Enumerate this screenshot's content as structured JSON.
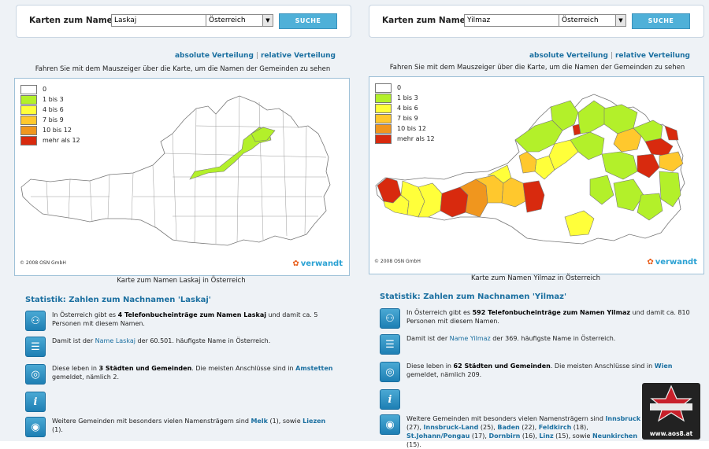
{
  "left": {
    "search": {
      "label": "Karten zum Namen",
      "value": "Laskaj",
      "country": "Österreich",
      "button": "SUCHE"
    },
    "links": {
      "absolute": "absolute Verteilung",
      "sep": "|",
      "relative": "relative Verteilung"
    },
    "hint": "Fahren Sie mit dem Mauszeiger über die Karte, um die Namen der Gemeinden zu sehen",
    "legend": [
      {
        "label": "0",
        "color": "#ffffff"
      },
      {
        "label": "1 bis 3",
        "color": "#b3f02a"
      },
      {
        "label": "4 bis 6",
        "color": "#ffff3a"
      },
      {
        "label": "7 bis 9",
        "color": "#ffc82d"
      },
      {
        "label": "10 bis 12",
        "color": "#f0961e"
      },
      {
        "label": "mehr als 12",
        "color": "#d82a0e"
      }
    ],
    "copyright": "© 2008 OSN GmbH",
    "brand": "verwandt",
    "caption": "Karte zum Namen Laskaj in Österreich",
    "stats_title": "Statistik: Zahlen zum Nachnamen 'Laskaj'",
    "stats": {
      "s1": {
        "a": "In Österreich gibt es ",
        "b": "4 Telefonbucheinträge zum Namen Laskaj",
        "c": " und damit ca. 5 Personen mit diesem Namen."
      },
      "s2": {
        "a": "Damit ist der ",
        "link": "Name Laskaj",
        "c": " der 60.501. häufigste Name in Österreich."
      },
      "s3": {
        "a": "Diese leben in ",
        "b": "3 Städten und Gemeinden",
        "c": ". Die meisten Anschlüsse sind in ",
        "city": "Amstetten",
        "d": " gemeldet, nämlich 2."
      },
      "s5": {
        "a": "Weitere Gemeinden mit besonders vielen Namensträgern sind ",
        "c1": "Melk",
        "n1": " (1), sowie ",
        "c2": "Liezen",
        "n2": " (1)."
      }
    }
  },
  "right": {
    "search": {
      "label": "Karten zum Namen",
      "value": "Yilmaz",
      "country": "Österreich",
      "button": "SUCHE"
    },
    "links": {
      "absolute": "absolute Verteilung",
      "sep": "|",
      "relative": "relative Verteilung"
    },
    "hint": "Fahren Sie mit dem Mauszeiger über die Karte, um die Namen der Gemeinden zu sehen",
    "legend": [
      {
        "label": "0",
        "color": "#ffffff"
      },
      {
        "label": "1 bis 3",
        "color": "#b3f02a"
      },
      {
        "label": "4 bis 6",
        "color": "#ffff3a"
      },
      {
        "label": "7 bis 9",
        "color": "#ffc82d"
      },
      {
        "label": "10 bis 12",
        "color": "#f0961e"
      },
      {
        "label": "mehr als 12",
        "color": "#d82a0e"
      }
    ],
    "copyright": "© 2008 OSN GmbH",
    "brand": "verwandt",
    "caption": "Karte zum Namen Yilmaz in Österreich",
    "stats_title": "Statistik: Zahlen zum Nachnamen 'Yilmaz'",
    "stats": {
      "s1": {
        "a": "In Österreich gibt es ",
        "b": "592 Telefonbucheinträge zum Namen Yilmaz",
        "c": " und damit ca. 810 Personen mit diesem Namen."
      },
      "s2": {
        "a": "Damit ist der ",
        "link": "Name Yilmaz",
        "c": " der 369. häufigste Name in Österreich."
      },
      "s3": {
        "a": "Diese leben in ",
        "b": "62 Städten und Gemeinden",
        "c": ". Die meisten Anschlüsse sind in ",
        "city": "Wien",
        "d": " gemeldet, nämlich 209."
      },
      "s5": {
        "a": "Weitere Gemeinden mit besonders vielen Namensträgern sind ",
        "c1": "Innsbruck",
        "n1": " (27), ",
        "c2": "Innsbruck-Land",
        "n2": " (25), ",
        "c3": "Baden",
        "n3": " (22), ",
        "c4": "Feldkirch",
        "n4": " (18), ",
        "c5": "St.Johann/Pongau",
        "n5": " (17), ",
        "c6": "Dornbirn",
        "n6": " (16), ",
        "c7": "Linz",
        "n7": " (15), sowie ",
        "c8": "Neunkirchen",
        "n8": " (15)."
      }
    }
  },
  "watermark": {
    "badge": "OLD STARS",
    "url": "www.aos8.at"
  }
}
